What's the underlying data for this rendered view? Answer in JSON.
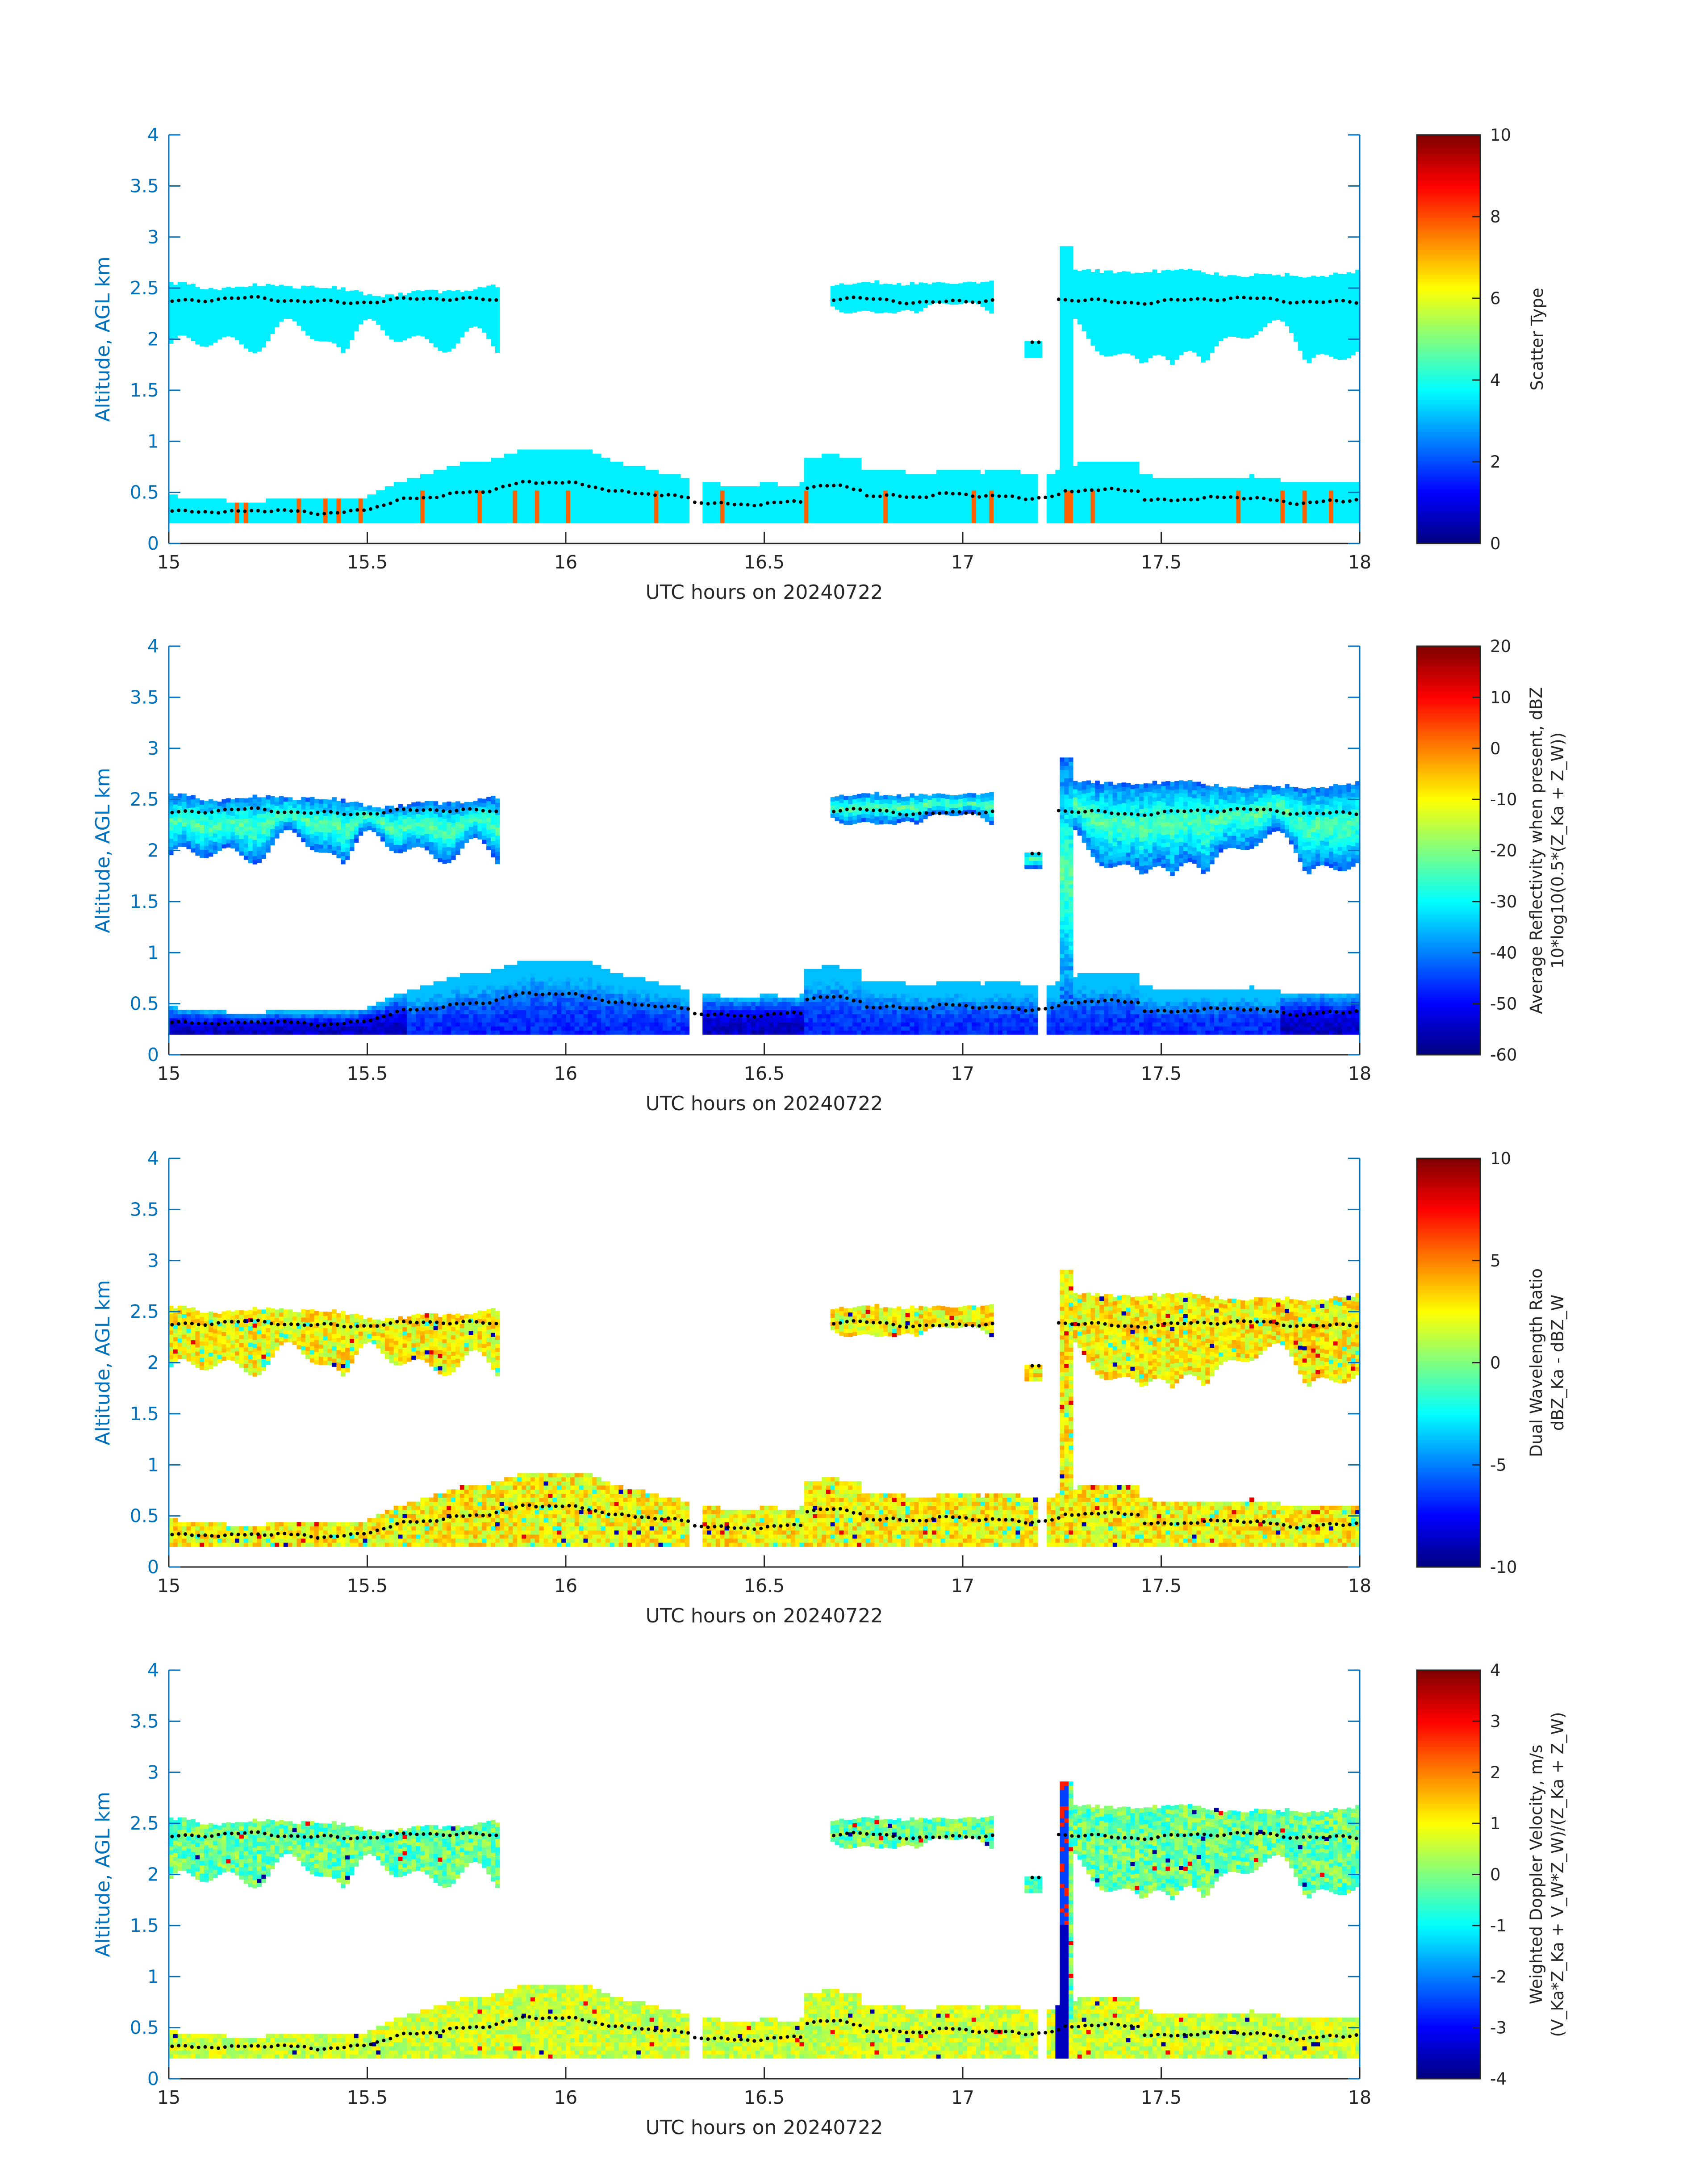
{
  "chart_data": [
    {
      "type": "heatmap",
      "xlabel": "UTC hours on 20240722",
      "ylabel": "Altitude, AGL km",
      "xlim": [
        15,
        18
      ],
      "ylim": [
        0,
        4
      ],
      "xticks": [
        "15",
        "15.5",
        "16",
        "16.5",
        "17",
        "17.5",
        "18"
      ],
      "yticks": [
        "0",
        "0.5",
        "1",
        "1.5",
        "2",
        "2.5",
        "3",
        "3.5",
        "4"
      ],
      "colorbar": {
        "label_lines": [
          "Scatter Type"
        ],
        "clim": [
          0,
          10
        ],
        "ticks": [
          "0",
          "2",
          "4",
          "6",
          "8",
          "10"
        ]
      },
      "field": "scatter",
      "layers": [
        {
          "name": "lower",
          "bottom": 0.2,
          "top_start": 0.5,
          "top_peak": 0.9,
          "value_note": "scatter type 3.5 with isolated type 8 columns"
        },
        {
          "name": "upper",
          "bottom": 1.9,
          "top": 2.6
        }
      ]
    },
    {
      "type": "heatmap",
      "xlabel": "UTC hours on 20240722",
      "ylabel": "Altitude, AGL km",
      "xlim": [
        15,
        18
      ],
      "ylim": [
        0,
        4
      ],
      "xticks": [
        "15",
        "15.5",
        "16",
        "16.5",
        "17",
        "17.5",
        "18"
      ],
      "yticks": [
        "0",
        "0.5",
        "1",
        "1.5",
        "2",
        "2.5",
        "3",
        "3.5",
        "4"
      ],
      "colorbar": {
        "label_lines": [
          "Average Reflectivity when present, dBZ",
          "10*log10(0.5*(Z_Ka + Z_W))"
        ],
        "clim": [
          -60,
          20
        ],
        "ticks": [
          "-60",
          "-50",
          "-40",
          "-30",
          "-20",
          "-10",
          "0",
          "10",
          "20"
        ]
      },
      "field": "reflectivity"
    },
    {
      "type": "heatmap",
      "xlabel": "UTC hours on 20240722",
      "ylabel": "Altitude, AGL km",
      "xlim": [
        15,
        18
      ],
      "ylim": [
        0,
        4
      ],
      "xticks": [
        "15",
        "15.5",
        "16",
        "16.5",
        "17",
        "17.5",
        "18"
      ],
      "yticks": [
        "0",
        "0.5",
        "1",
        "1.5",
        "2",
        "2.5",
        "3",
        "3.5",
        "4"
      ],
      "colorbar": {
        "label_lines": [
          "Dual Wavelength Ratio",
          "dBZ_Ka - dBZ_W"
        ],
        "clim": [
          -10,
          10
        ],
        "ticks": [
          "-10",
          "-5",
          "0",
          "5",
          "10"
        ]
      },
      "field": "dwr"
    },
    {
      "type": "heatmap",
      "xlabel": "UTC hours on 20240722",
      "ylabel": "Altitude, AGL km",
      "xlim": [
        15,
        18
      ],
      "ylim": [
        0,
        4
      ],
      "xticks": [
        "15",
        "15.5",
        "16",
        "16.5",
        "17",
        "17.5",
        "18"
      ],
      "yticks": [
        "0",
        "0.5",
        "1",
        "1.5",
        "2",
        "2.5",
        "3",
        "3.5",
        "4"
      ],
      "colorbar": {
        "label_lines": [
          "Weighted Doppler Velocity, m/s",
          "(V_Ka*Z_Ka + V_W*Z_W)/(Z_Ka + Z_W)"
        ],
        "clim": [
          -4,
          4
        ],
        "ticks": [
          "-4",
          "-3",
          "-2",
          "-1",
          "0",
          "1",
          "2",
          "3",
          "4"
        ]
      },
      "field": "velocity"
    }
  ]
}
